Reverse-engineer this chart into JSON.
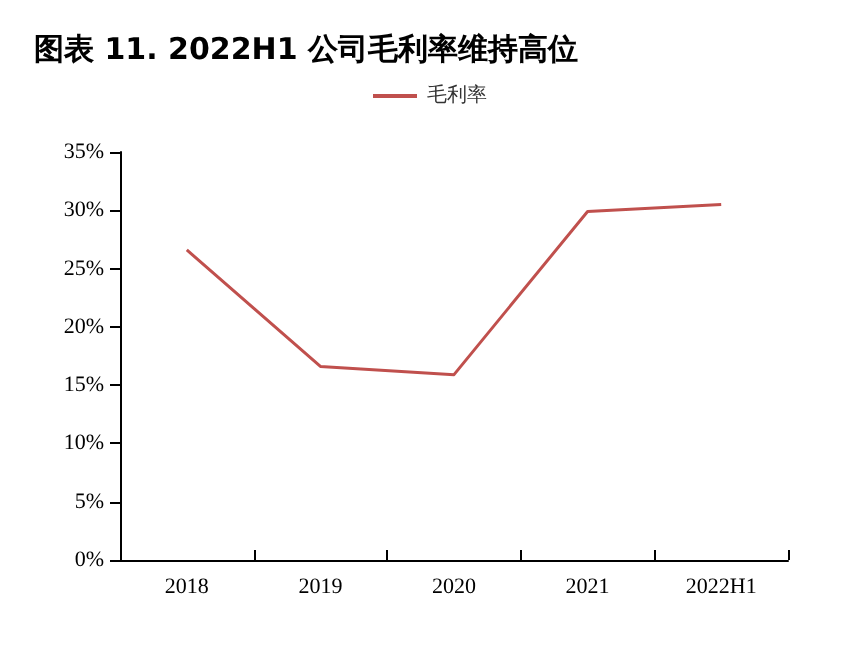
{
  "chart_data": {
    "type": "line",
    "title": "图表 11. 2022H1 公司毛利率维持高位",
    "categories": [
      "2018",
      "2019",
      "2020",
      "2021",
      "2022H1"
    ],
    "series": [
      {
        "name": "毛利率",
        "color": "#c0504d",
        "values": [
          26.6,
          16.6,
          15.9,
          29.9,
          30.5
        ]
      }
    ],
    "ylim": [
      0,
      35
    ],
    "yticks": [
      {
        "value": 0,
        "label": "0%"
      },
      {
        "value": 5,
        "label": "5%"
      },
      {
        "value": 10,
        "label": "10%"
      },
      {
        "value": 15,
        "label": "15%"
      },
      {
        "value": 20,
        "label": "20%"
      },
      {
        "value": 25,
        "label": "25%"
      },
      {
        "value": 30,
        "label": "30%"
      },
      {
        "value": 35,
        "label": "35%"
      }
    ],
    "grid": false,
    "legend": "top",
    "marker": "none",
    "line_style": "solid"
  }
}
